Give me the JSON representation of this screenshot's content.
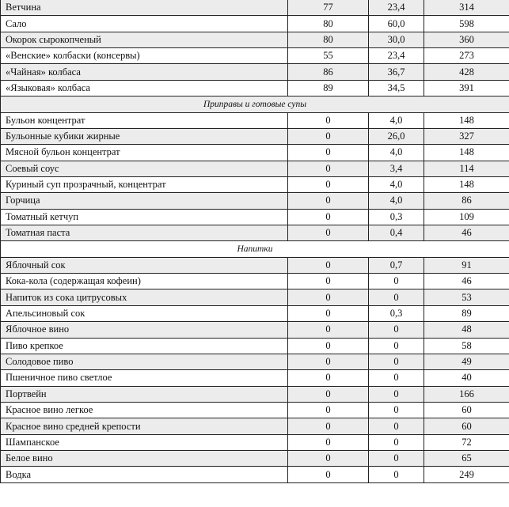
{
  "rows": [
    {
      "type": "item",
      "name": "Ветчина",
      "c1": "77",
      "c2": "23,4",
      "c3": "314"
    },
    {
      "type": "item",
      "name": "Сало",
      "c1": "80",
      "c2": "60,0",
      "c3": "598"
    },
    {
      "type": "item",
      "name": "Окорок сырокопченый",
      "c1": "80",
      "c2": "30,0",
      "c3": "360"
    },
    {
      "type": "item",
      "name": "«Венские» колбаски (консервы)",
      "c1": "55",
      "c2": "23,4",
      "c3": "273"
    },
    {
      "type": "item",
      "name": "«Чайная» колбаса",
      "c1": "86",
      "c2": "36,7",
      "c3": "428"
    },
    {
      "type": "item",
      "name": "«Языковая» колбаса",
      "c1": "89",
      "c2": "34,5",
      "c3": "391"
    },
    {
      "type": "section",
      "name": "Приправы и готовые супы"
    },
    {
      "type": "item",
      "name": "Бульон концентрат",
      "c1": "0",
      "c2": "4,0",
      "c3": "148"
    },
    {
      "type": "item",
      "name": "Бульонные кубики жирные",
      "c1": "0",
      "c2": "26,0",
      "c3": "327"
    },
    {
      "type": "item",
      "name": "Мясной бульон концентрат",
      "c1": "0",
      "c2": "4,0",
      "c3": "148"
    },
    {
      "type": "item",
      "name": "Соевый соус",
      "c1": "0",
      "c2": "3,4",
      "c3": "114"
    },
    {
      "type": "item",
      "name": "Куриный суп прозрачный, концентрат",
      "c1": "0",
      "c2": "4,0",
      "c3": "148"
    },
    {
      "type": "item",
      "name": "Горчица",
      "c1": "0",
      "c2": "4,0",
      "c3": "86"
    },
    {
      "type": "item",
      "name": "Томатный кетчуп",
      "c1": "0",
      "c2": "0,3",
      "c3": "109"
    },
    {
      "type": "item",
      "name": "Томатная паста",
      "c1": "0",
      "c2": "0,4",
      "c3": "46"
    },
    {
      "type": "section",
      "name": "Напитки"
    },
    {
      "type": "item",
      "name": "Яблочный сок",
      "c1": "0",
      "c2": "0,7",
      "c3": "91"
    },
    {
      "type": "item",
      "name": "Кока-кола (содержащая кофеин)",
      "c1": "0",
      "c2": "0",
      "c3": "46"
    },
    {
      "type": "item",
      "name": "Напиток из сока цитрусовых",
      "c1": "0",
      "c2": "0",
      "c3": "53"
    },
    {
      "type": "item",
      "name": "Апельсиновый сок",
      "c1": "0",
      "c2": "0,3",
      "c3": "89"
    },
    {
      "type": "item",
      "name": "Яблочное вино",
      "c1": "0",
      "c2": "0",
      "c3": "48"
    },
    {
      "type": "item",
      "name": "Пиво крепкое",
      "c1": "0",
      "c2": "0",
      "c3": "58"
    },
    {
      "type": "item",
      "name": "Солодовое пиво",
      "c1": "0",
      "c2": "0",
      "c3": "49"
    },
    {
      "type": "item",
      "name": "Пшеничное пиво светлое",
      "c1": "0",
      "c2": "0",
      "c3": "40"
    },
    {
      "type": "item",
      "name": "Портвейн",
      "c1": "0",
      "c2": "0",
      "c3": "166"
    },
    {
      "type": "item",
      "name": "Красное вино легкое",
      "c1": "0",
      "c2": "0",
      "c3": "60"
    },
    {
      "type": "item",
      "name": "Красное вино средней крепости",
      "c1": "0",
      "c2": "0",
      "c3": "60"
    },
    {
      "type": "item",
      "name": "Шампанское",
      "c1": "0",
      "c2": "0",
      "c3": "72"
    },
    {
      "type": "item",
      "name": "Белое вино",
      "c1": "0",
      "c2": "0",
      "c3": "65"
    },
    {
      "type": "item",
      "name": "Водка",
      "c1": "0",
      "c2": "0",
      "c3": "249"
    }
  ],
  "colors": {
    "stripe": "#ececec",
    "border": "#222222"
  }
}
